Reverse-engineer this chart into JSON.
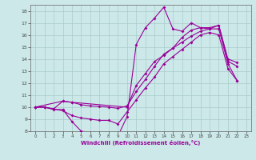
{
  "xlabel": "Windchill (Refroidissement éolien,°C)",
  "xlim": [
    -0.5,
    23.5
  ],
  "ylim": [
    8,
    18.5
  ],
  "bg_color": "#cce8e8",
  "line_color": "#990099",
  "grid_color": "#aacccc",
  "line1_x": [
    0,
    1,
    2,
    3,
    4,
    5,
    6,
    7,
    8,
    9,
    10,
    11,
    12,
    13,
    14,
    15,
    16,
    17,
    18,
    19,
    20,
    21,
    22
  ],
  "line1_y": [
    10.0,
    10.0,
    9.8,
    9.8,
    8.8,
    8.0,
    7.9,
    7.9,
    7.8,
    7.6,
    9.2,
    15.2,
    16.6,
    17.4,
    18.3,
    16.5,
    16.3,
    17.0,
    16.6,
    16.5,
    16.5,
    13.6,
    12.2
  ],
  "line2_x": [
    0,
    3,
    4,
    10,
    11,
    12,
    13,
    14,
    15,
    16,
    17,
    18,
    19,
    20,
    21,
    22
  ],
  "line2_y": [
    10.0,
    10.5,
    10.4,
    10.0,
    11.8,
    12.8,
    13.8,
    14.3,
    14.9,
    15.8,
    16.4,
    16.6,
    16.6,
    16.8,
    14.0,
    13.7
  ],
  "line3_x": [
    0,
    1,
    2,
    3,
    4,
    5,
    6,
    7,
    8,
    9,
    10,
    11,
    12,
    13,
    14,
    15,
    16,
    17,
    18,
    19,
    20,
    21,
    22
  ],
  "line3_y": [
    10.0,
    10.0,
    9.85,
    10.5,
    10.4,
    10.2,
    10.1,
    10.05,
    10.0,
    9.9,
    10.1,
    11.3,
    12.3,
    13.4,
    14.4,
    14.9,
    15.4,
    15.9,
    16.3,
    16.5,
    16.8,
    13.8,
    13.4
  ],
  "line4_x": [
    0,
    1,
    2,
    3,
    4,
    5,
    6,
    7,
    8,
    9,
    10,
    11,
    12,
    13,
    14,
    15,
    16,
    17,
    18,
    19,
    20,
    21,
    22
  ],
  "line4_y": [
    10.0,
    10.0,
    9.85,
    9.7,
    9.3,
    9.1,
    9.0,
    8.9,
    8.9,
    8.6,
    9.6,
    10.6,
    11.6,
    12.5,
    13.6,
    14.2,
    14.8,
    15.4,
    16.0,
    16.2,
    16.0,
    13.2,
    12.2
  ]
}
